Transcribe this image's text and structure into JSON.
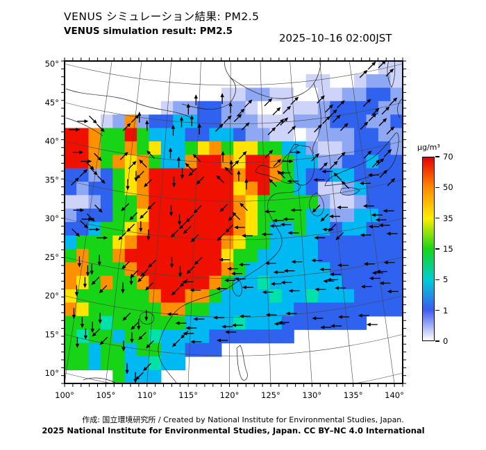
{
  "header": {
    "title_ja": "VENUS シミュレーション結果: PM2.5",
    "title_en": "VENUS simulation result: PM2.5",
    "datetime": "2025–10–16 02:00JST"
  },
  "axes": {
    "lon_labels": [
      "100°",
      "105°",
      "110°",
      "115°",
      "120°",
      "125°",
      "130°",
      "135°",
      "140°"
    ],
    "lat_labels": [
      "50°",
      "45°",
      "40°",
      "35°",
      "30°",
      "25°",
      "20°",
      "15°",
      "10°"
    ]
  },
  "legend": {
    "unit": "µg/m³",
    "tick_labels": [
      "70",
      "50",
      "35",
      "15",
      "5",
      "1",
      "0"
    ],
    "stop_colors": [
      "#e80000",
      "#ff8c00",
      "#ffee00",
      "#16d616",
      "#00cdd4",
      "#3c5cf0",
      "#ffffff"
    ]
  },
  "footer": {
    "credit_line": "作成: 国立環境研究所 / Created by National Institute for Environmental Studies, Japan.",
    "license_line": "2025 National Institute for Environmental Studies, Japan. CC BY–NC 4.0 International"
  },
  "chart_data": {
    "type": "heatmap",
    "title": "VENUS simulation result: PM2.5",
    "unit": "µg/m³",
    "datetime": "2025-10-16 02:00JST",
    "lon_range": [
      100,
      141
    ],
    "lat_range": [
      10,
      50.5
    ],
    "colorscale": {
      "values": [
        0,
        1,
        5,
        15,
        35,
        50,
        70
      ],
      "colors": [
        "#ffffff",
        "#3c5cf0",
        "#00cdd4",
        "#16d616",
        "#ffee00",
        "#ff8c00",
        "#e80000"
      ]
    },
    "palette": {
      "w": "#ffffff",
      "p": "#cdd3f9",
      "l": "#8fa8f3",
      "b": "#2f62ee",
      "c": "#00b9f2",
      "t": "#00e2a9",
      "g": "#17d417",
      "y": "#ffe400",
      "o": "#ff9000",
      "r": "#ef1000"
    },
    "grid_note": "28 cols x 24 rows PM2.5 field over plot box; n = outside simulation domain (white)",
    "grid_rows": [
      "nnnnnnnnnnnnnnnnnnnnnnnnnnpp",
      "nnnnnnnnnnnnnnnnnnnnppwwpllp",
      "nnnnnnnnnnnnnppllppwwppllbbl",
      "nnnnnnnnpllbbllpwwppplbbbbll",
      "nnnplolbbccbblllppplllbbbllb",
      "rroggrgcccbbccbllppwplllbbll",
      "rroggogyccgyogyyggcclpplbbbl",
      "rrogoyogccorroyrrogccllbbcbb",
      "bblbgyorrrrrrrorrogcbbccbbbb",
      "blbbgyorrrrrrryorggcbpplcbbb",
      "pplbggorrrrrrroyggggglpplbbb",
      "lbbbggyrrrrrrroyggggccllccbb",
      "bbcggyorrrrrrroygccgccbccbbb",
      "cgggyorrrrrrroyggccccbbbbbbb",
      "goggorrrrrrrryggcccccbbbbbbb",
      "oogggorrrrrrrogcccccccbbbbbb",
      "oygoggorrrrrogcctccccccbbbbb",
      "yggggggorroogcccctcctcccbbbb",
      "oyggggggooggcccccccbbbbbbbbb",
      "gggtggggggcccctcccbbbbbbbnnn",
      "gtggcggtccccbbbbbbbnnnnnnnnn",
      "ggcggcggccbbbnnnnnnnnnnnnnnn",
      "ggcggcctccnnnnnnnnnnnnnnnnnn",
      "nnnngcccnnnnnnnnnnnnnnnnnnnn"
    ],
    "wind_dir_key": "0=E 1=NE 2=N 3=NW 4=W 5=SW 6=S 7=SE, .=no arrow",
    "wind_dir_rows": [
      "............11",
      ".....221111111",
      "07122211111111",
      "07132321101111",
      "17656532344341",
      "07556553445444",
      "70565554444544",
      "66556544444444",
      "65655444444444",
      "6656444444444.",
      "6565544.......",
      "..65.........."
    ]
  }
}
